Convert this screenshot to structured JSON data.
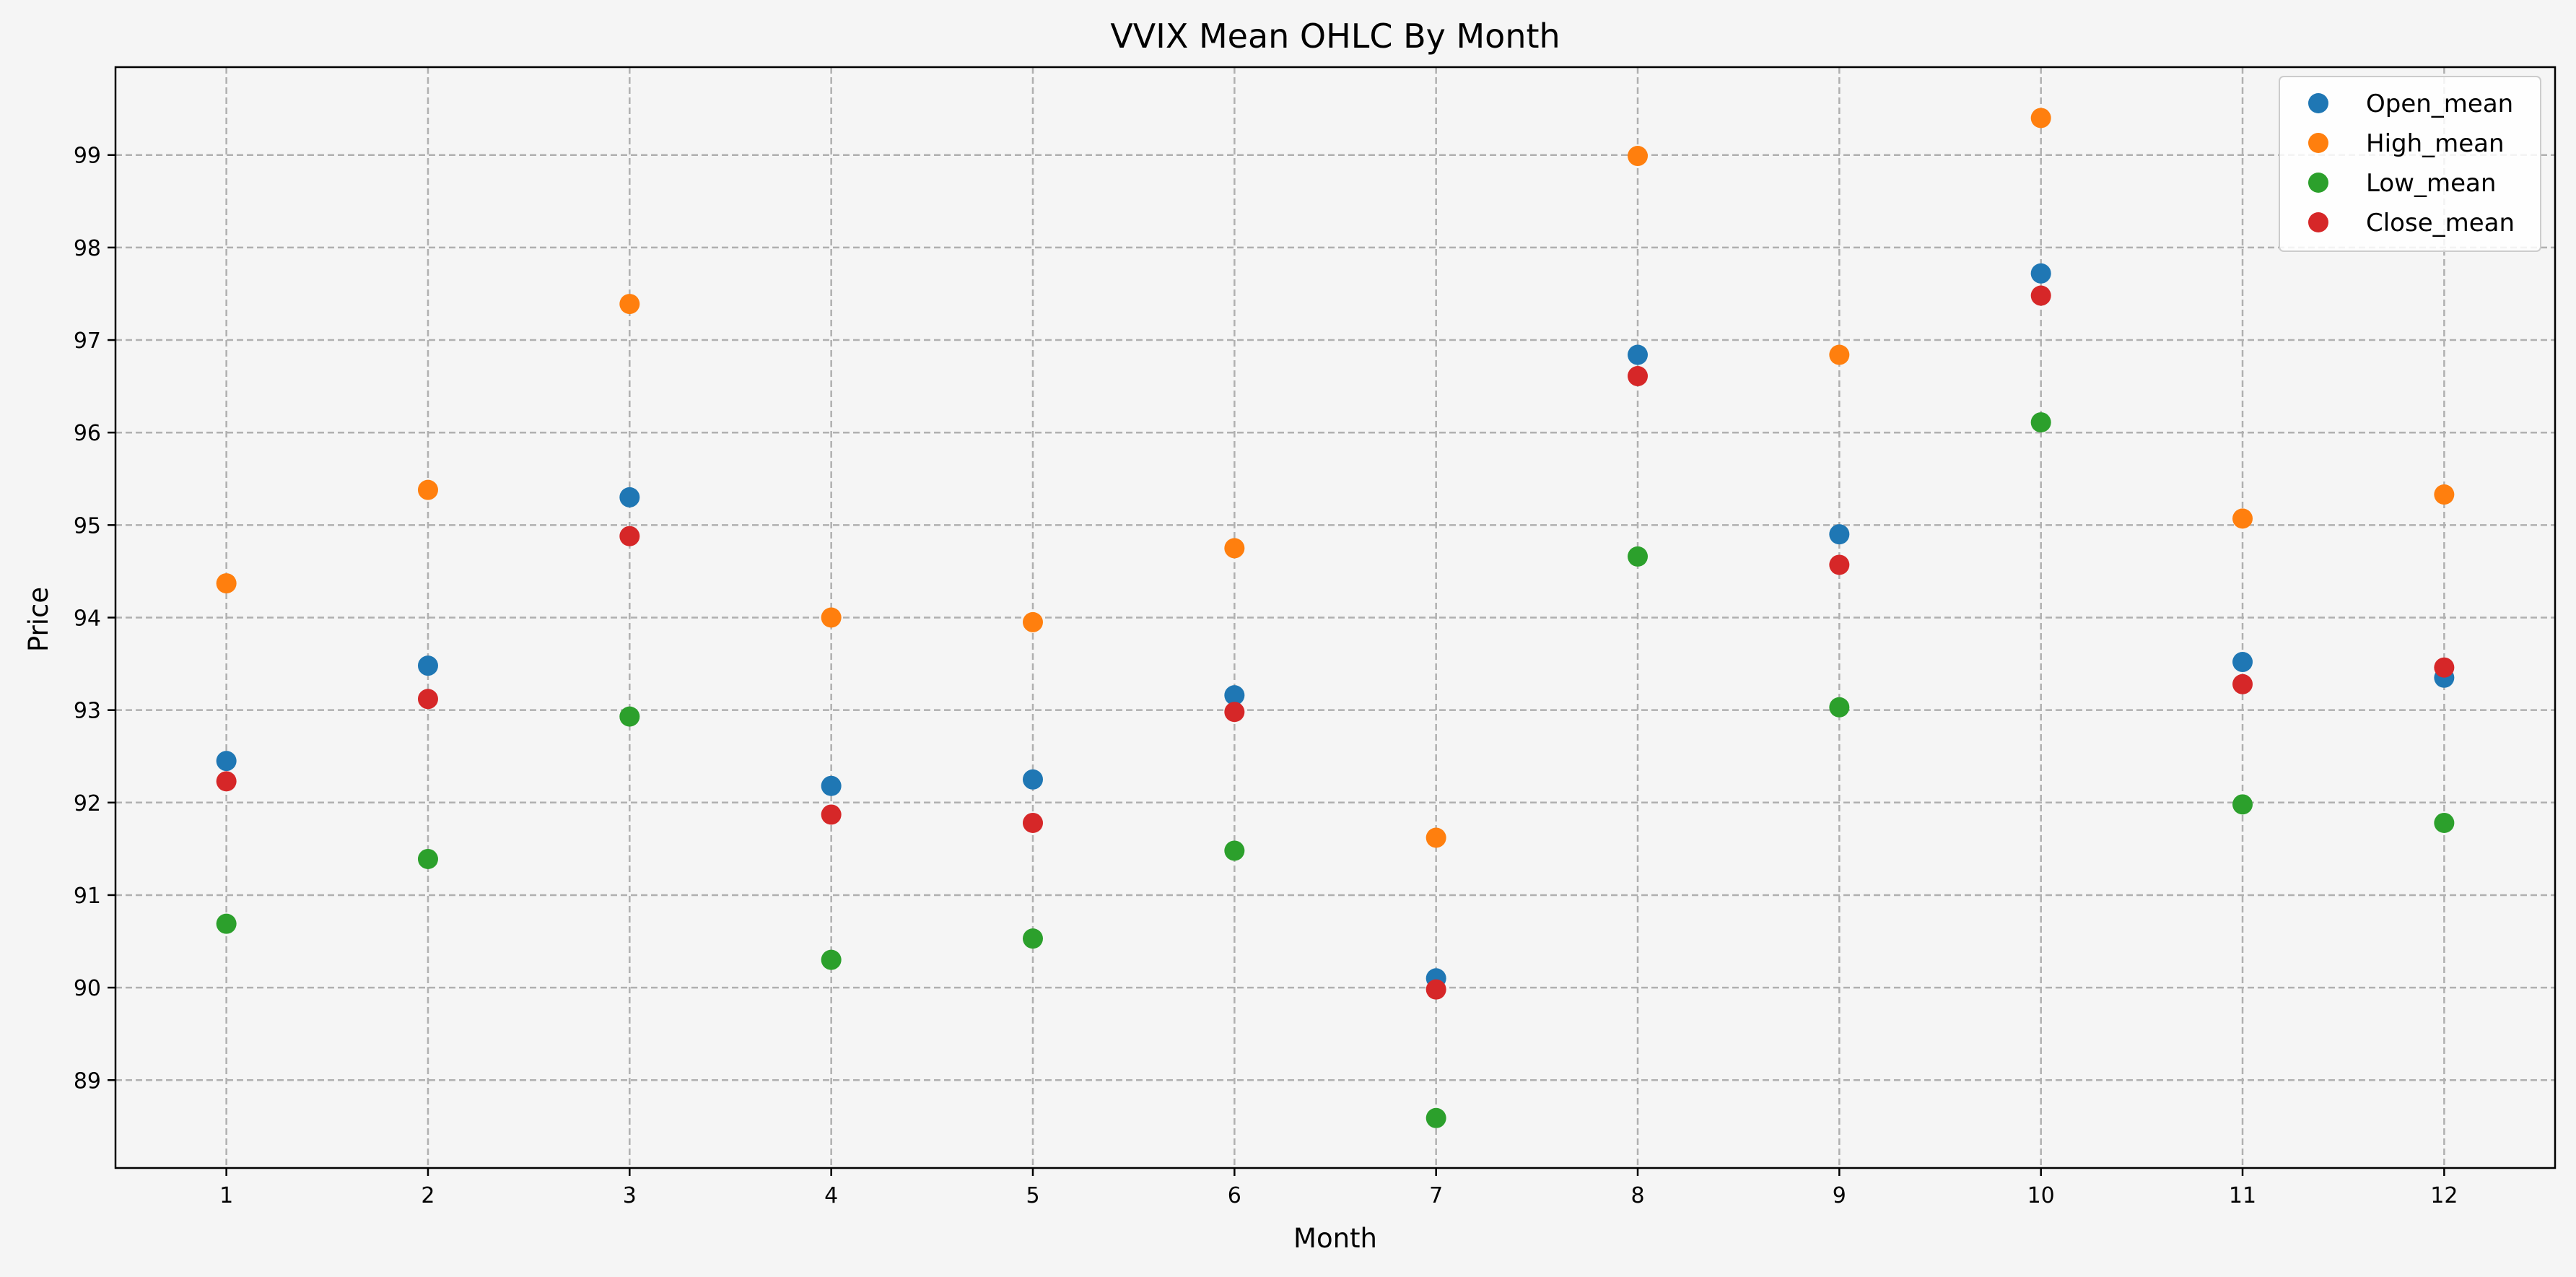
{
  "chart_data": {
    "type": "scatter",
    "title": "VVIX Mean OHLC By Month",
    "xlabel": "Month",
    "ylabel": "Price",
    "x": [
      1,
      2,
      3,
      4,
      5,
      6,
      7,
      8,
      9,
      10,
      11,
      12
    ],
    "xticks": [
      "1",
      "2",
      "3",
      "4",
      "5",
      "6",
      "7",
      "8",
      "9",
      "10",
      "11",
      "12"
    ],
    "yticks": [
      "89",
      "90",
      "91",
      "92",
      "93",
      "94",
      "95",
      "96",
      "97",
      "98",
      "99"
    ],
    "xlim": [
      0.45,
      12.55
    ],
    "ylim": [
      88.05,
      99.95
    ],
    "grid": true,
    "legend_position": "top-right",
    "series": [
      {
        "name": "Open_mean",
        "color": "#1f77b4",
        "values": [
          92.45,
          93.48,
          95.3,
          92.18,
          92.25,
          93.16,
          90.1,
          96.84,
          94.9,
          97.72,
          93.52,
          93.35
        ]
      },
      {
        "name": "High_mean",
        "color": "#ff7f0e",
        "values": [
          94.37,
          95.38,
          97.39,
          94.0,
          93.95,
          94.75,
          91.62,
          98.99,
          96.84,
          99.4,
          95.07,
          95.33
        ]
      },
      {
        "name": "Low_mean",
        "color": "#2ca02c",
        "values": [
          90.69,
          91.39,
          92.93,
          90.3,
          90.53,
          91.48,
          88.59,
          94.66,
          93.03,
          96.11,
          91.98,
          91.78
        ]
      },
      {
        "name": "Close_mean",
        "color": "#d62728",
        "values": [
          92.23,
          93.12,
          94.88,
          91.87,
          91.78,
          92.98,
          89.98,
          96.61,
          94.57,
          97.48,
          93.28,
          93.46
        ]
      }
    ]
  }
}
